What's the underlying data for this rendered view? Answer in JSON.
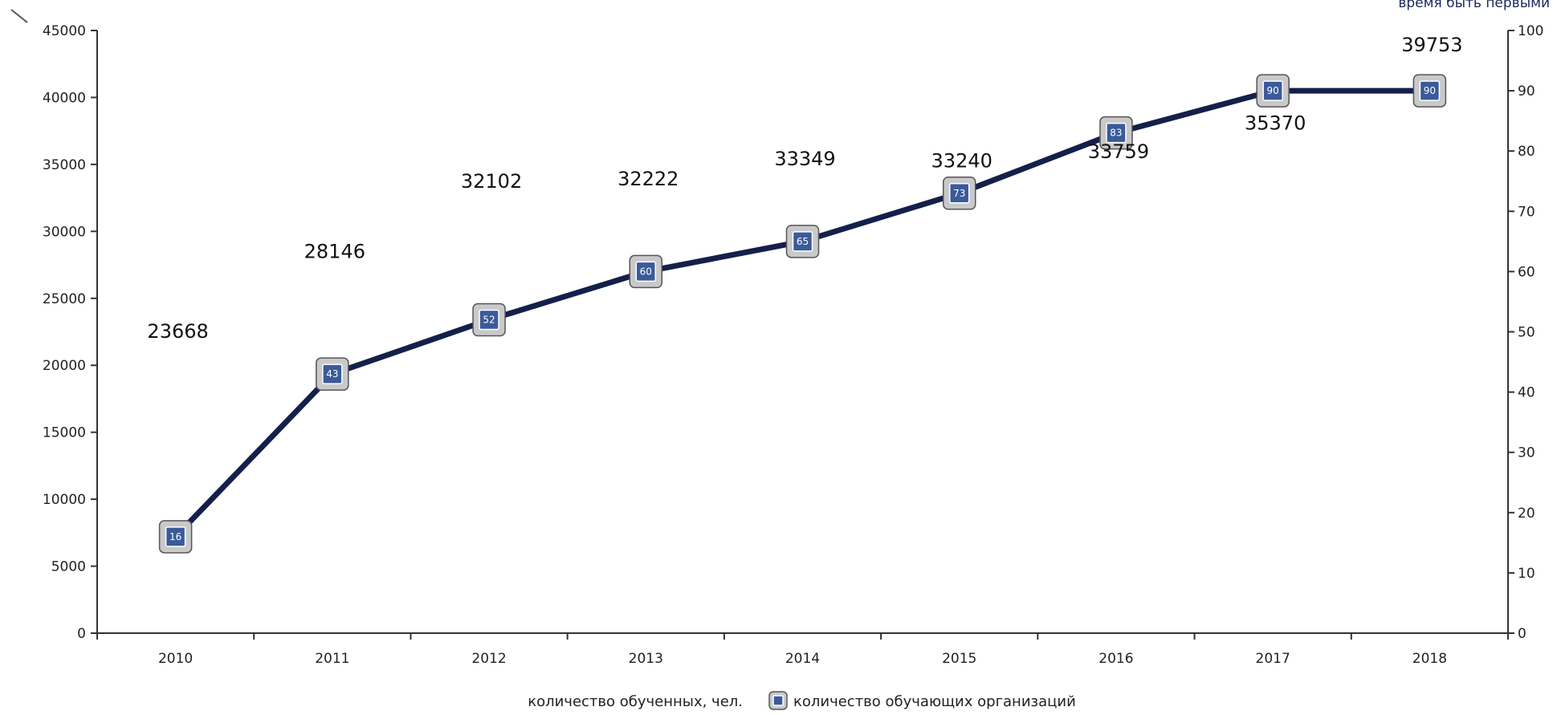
{
  "corner_text": "время быть первыми",
  "chart_data": {
    "type": "line",
    "categories": [
      "2010",
      "2011",
      "2012",
      "2013",
      "2014",
      "2015",
      "2016",
      "2017",
      "2018"
    ],
    "series": [
      {
        "name": "количество обученных, чел.",
        "axis": "left",
        "values": [
          23668,
          28146,
          32102,
          32222,
          33349,
          33240,
          33759,
          35370,
          39753
        ],
        "labels": [
          "23668",
          "28146",
          "32102",
          "32222",
          "33349",
          "33240",
          "33759",
          "35370",
          "39753"
        ]
      },
      {
        "name": "количество обучающих организаций",
        "axis": "right",
        "values": [
          16,
          43,
          52,
          60,
          65,
          73,
          83,
          90,
          90
        ],
        "color": "#14204a"
      }
    ],
    "y_left": {
      "min": 0,
      "max": 45000,
      "ticks": [
        "0",
        "5000",
        "10000",
        "15000",
        "20000",
        "25000",
        "30000",
        "35000",
        "40000",
        "45000"
      ]
    },
    "y_right": {
      "min": 0,
      "max": 100,
      "ticks": [
        "0",
        "10",
        "20",
        "30",
        "40",
        "50",
        "60",
        "70",
        "80",
        "90",
        "100"
      ]
    },
    "grid": false,
    "legend_position": "bottom"
  }
}
